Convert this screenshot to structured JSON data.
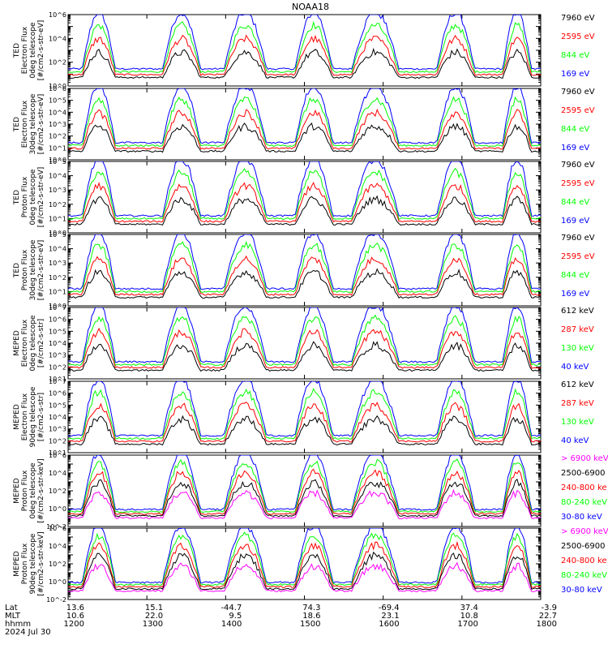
{
  "chart_data": {
    "type": "line",
    "title": "NOAA18",
    "x_range": [
      "1200",
      "1800"
    ],
    "footer": {
      "row_labels": [
        "Lat",
        "MLT",
        "hhmm",
        "2024 Jul 30"
      ],
      "columns": [
        {
          "lat": "13.6",
          "mlt": "10.6",
          "hhmm": "1200"
        },
        {
          "lat": "15.1",
          "mlt": "22.0",
          "hhmm": "1300"
        },
        {
          "lat": "-44.7",
          "mlt": "9.5",
          "hhmm": "1400"
        },
        {
          "lat": "74.3",
          "mlt": "18.6",
          "hhmm": "1500"
        },
        {
          "lat": "-69.4",
          "mlt": "23.1",
          "hhmm": "1600"
        },
        {
          "lat": "37.4",
          "mlt": "10.8",
          "hhmm": "1700"
        },
        {
          "lat": "-3.9",
          "mlt": "22.7",
          "hhmm": "1800"
        }
      ]
    },
    "panels": [
      {
        "ylabel": [
          "TED",
          "Electron Flux",
          "0deg telescope",
          "[#/cm2-s-str-eV]"
        ],
        "ylim_exp": [
          0,
          6
        ],
        "tick_labels": [
          "10^0",
          "10^2",
          "10^4",
          "10^6"
        ],
        "series": [
          {
            "name": "7960 eV",
            "color": "#000000"
          },
          {
            "name": "2595 eV",
            "color": "#ff0000"
          },
          {
            "name": "844 eV",
            "color": "#00ff00"
          },
          {
            "name": "169 eV",
            "color": "#0000ff"
          }
        ]
      },
      {
        "ylabel": [
          "TED",
          "Electron Flux",
          "30deg telescope",
          "[#/cm2-s-str-eV]"
        ],
        "ylim_exp": [
          0,
          6
        ],
        "tick_labels": [
          "10^0",
          "10^1",
          "10^2",
          "10^3",
          "10^4",
          "10^5",
          "10^6"
        ],
        "series": [
          {
            "name": "7960 eV",
            "color": "#000000"
          },
          {
            "name": "2595 eV",
            "color": "#ff0000"
          },
          {
            "name": "844 eV",
            "color": "#00ff00"
          },
          {
            "name": "169 eV",
            "color": "#0000ff"
          }
        ]
      },
      {
        "ylabel": [
          "TED",
          "Proton Flux",
          "0deg telescope",
          "[#/cm2-s-str-eV]"
        ],
        "ylim_exp": [
          0,
          5
        ],
        "tick_labels": [
          "10^0",
          "10^1",
          "10^2",
          "10^3",
          "10^4",
          "10^5"
        ],
        "series": [
          {
            "name": "7960 eV",
            "color": "#000000"
          },
          {
            "name": "2595 eV",
            "color": "#ff0000"
          },
          {
            "name": "844 eV",
            "color": "#00ff00"
          },
          {
            "name": "169 eV",
            "color": "#0000ff"
          }
        ]
      },
      {
        "ylabel": [
          "TED",
          "Proton Flux",
          "30deg telescope",
          "[#/cm2-s-str-eV]"
        ],
        "ylim_exp": [
          0,
          5
        ],
        "tick_labels": [
          "10^0",
          "10^1",
          "10^2",
          "10^3",
          "10^4",
          "10^5"
        ],
        "series": [
          {
            "name": "7960 eV",
            "color": "#000000"
          },
          {
            "name": "2595 eV",
            "color": "#ff0000"
          },
          {
            "name": "844 eV",
            "color": "#00ff00"
          },
          {
            "name": "169 eV",
            "color": "#0000ff"
          }
        ]
      },
      {
        "ylabel": [
          "MEPED",
          "Electron Flux",
          "0deg telescope",
          "[#/cm2-s-str]"
        ],
        "ylim_exp": [
          1,
          7
        ],
        "tick_labels": [
          "10^1",
          "10^2",
          "10^3",
          "10^4",
          "10^5",
          "10^6",
          "10^7"
        ],
        "series": [
          {
            "name": "612 keV",
            "color": "#000000"
          },
          {
            "name": "287 keV",
            "color": "#ff0000"
          },
          {
            "name": "130 keV",
            "color": "#00ff00"
          },
          {
            "name": "40 keV",
            "color": "#0000ff"
          }
        ]
      },
      {
        "ylabel": [
          "MEPED",
          "Electron Flux",
          "90deg telescope",
          "[#/cm2-s-str]"
        ],
        "ylim_exp": [
          1,
          7
        ],
        "tick_labels": [
          "10^1",
          "10^2",
          "10^3",
          "10^4",
          "10^5",
          "10^6",
          "10^7"
        ],
        "series": [
          {
            "name": "612 keV",
            "color": "#000000"
          },
          {
            "name": "287 keV",
            "color": "#ff0000"
          },
          {
            "name": "130 keV",
            "color": "#00ff00"
          },
          {
            "name": "40 keV",
            "color": "#0000ff"
          }
        ]
      },
      {
        "ylabel": [
          "MEPED",
          "Proton Flux",
          "0deg telescope",
          "[#/cm2-s-str-keV]"
        ],
        "ylim_exp": [
          -2,
          6
        ],
        "tick_labels": [
          "10^-2",
          "10^0",
          "10^2",
          "10^4",
          "10^6"
        ],
        "series": [
          {
            "name": "> 6900 keV",
            "color": "#ff00ff"
          },
          {
            "name": "2500-6900",
            "color": "#000000"
          },
          {
            "name": "240-800 ke",
            "color": "#ff0000"
          },
          {
            "name": "80-240 keV",
            "color": "#00ff00"
          },
          {
            "name": "30-80 keV",
            "color": "#0000ff"
          }
        ]
      },
      {
        "ylabel": [
          "MEPED",
          "Proton Flux",
          "90deg telescope",
          "[#/cm2-s-str-keV]"
        ],
        "ylim_exp": [
          -2,
          6
        ],
        "tick_labels": [
          "10^-2",
          "10^0",
          "10^2",
          "10^4",
          "10^6"
        ],
        "series": [
          {
            "name": "> 6900 keV",
            "color": "#ff00ff"
          },
          {
            "name": "2500-6900",
            "color": "#000000"
          },
          {
            "name": "240-800 ke",
            "color": "#ff0000"
          },
          {
            "name": "80-240 keV",
            "color": "#00ff00"
          },
          {
            "name": "30-80 keV",
            "color": "#0000ff"
          }
        ]
      }
    ]
  }
}
